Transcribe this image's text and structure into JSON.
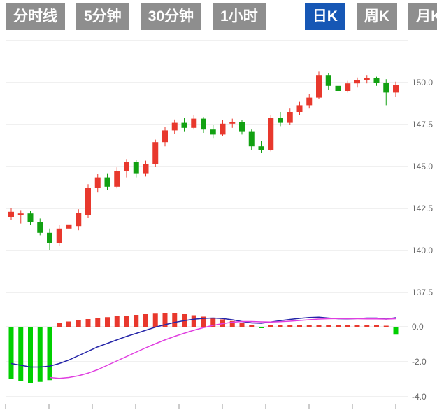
{
  "tabs": [
    {
      "label": "分时线",
      "active": false
    },
    {
      "label": "5分钟",
      "active": false
    },
    {
      "label": "30分钟",
      "active": false
    },
    {
      "label": "1小时",
      "active": false
    },
    {
      "label": "日K",
      "active": true
    },
    {
      "label": "周K",
      "active": false
    },
    {
      "label": "月K",
      "active": false
    }
  ],
  "colors": {
    "tab_bg": "#8e8e8e",
    "tab_active_bg": "#1657b5",
    "tab_text": "#ffffff",
    "up": "#e8382d",
    "down": "#12a112",
    "macd_up": "#e8382d",
    "macd_down": "#00cf00",
    "dif_line": "#2525a8",
    "dea_line": "#e03ee0",
    "grid": "#e2e2e2",
    "axis_text": "#666666",
    "tick": "#999999",
    "background": "#ffffff"
  },
  "chart_data": {
    "type": "candlestick",
    "subpanel_type": "macd",
    "title": "",
    "price_axis_labels": [
      "150.0",
      "147.5",
      "145.0",
      "142.5",
      "140.0",
      "137.5"
    ],
    "price_axis_values": [
      150.0,
      147.5,
      145.0,
      142.5,
      140.0,
      137.5
    ],
    "price_gridlines": [
      152.5,
      150.0,
      147.5,
      145.0,
      142.5,
      140.0,
      137.5
    ],
    "price_range": [
      136.6,
      152.6
    ],
    "macd_axis_labels": [
      "0.0",
      "-2.0",
      "-4.0"
    ],
    "macd_gridlines": [
      0.0,
      -2.0,
      -4.0
    ],
    "macd_range": [
      -4.4,
      0.9
    ],
    "grid": true,
    "legend_position": "none",
    "candles_ohlc": [
      [
        142.0,
        142.5,
        141.8,
        142.3
      ],
      [
        142.1,
        142.4,
        141.6,
        142.2
      ],
      [
        142.2,
        142.35,
        141.5,
        141.7
      ],
      [
        141.7,
        141.9,
        140.9,
        141.05
      ],
      [
        141.05,
        141.3,
        140.0,
        140.45
      ],
      [
        140.45,
        141.5,
        140.25,
        141.3
      ],
      [
        141.3,
        141.7,
        140.8,
        141.55
      ],
      [
        141.45,
        142.45,
        141.2,
        142.25
      ],
      [
        142.1,
        143.95,
        141.95,
        143.75
      ],
      [
        143.75,
        144.55,
        143.45,
        144.35
      ],
      [
        144.35,
        144.6,
        143.6,
        143.8
      ],
      [
        143.8,
        144.95,
        143.7,
        144.75
      ],
      [
        144.75,
        145.45,
        144.35,
        145.25
      ],
      [
        145.25,
        145.4,
        144.35,
        144.6
      ],
      [
        144.6,
        145.35,
        144.4,
        145.15
      ],
      [
        145.15,
        146.6,
        145.0,
        146.45
      ],
      [
        146.45,
        147.35,
        146.2,
        147.15
      ],
      [
        147.15,
        147.8,
        146.95,
        147.6
      ],
      [
        147.6,
        147.9,
        147.1,
        147.3
      ],
      [
        147.3,
        148.05,
        147.2,
        147.85
      ],
      [
        147.85,
        147.95,
        147.0,
        147.2
      ],
      [
        147.2,
        147.5,
        146.7,
        146.9
      ],
      [
        146.9,
        147.75,
        146.8,
        147.55
      ],
      [
        147.55,
        147.85,
        147.3,
        147.65
      ],
      [
        147.65,
        147.75,
        146.9,
        147.1
      ],
      [
        147.1,
        147.2,
        146.0,
        146.2
      ],
      [
        146.2,
        146.5,
        145.8,
        146.0
      ],
      [
        146.0,
        148.05,
        145.9,
        147.9
      ],
      [
        147.9,
        148.25,
        147.4,
        147.6
      ],
      [
        147.6,
        148.45,
        147.5,
        148.25
      ],
      [
        148.25,
        148.85,
        148.05,
        148.65
      ],
      [
        148.65,
        149.3,
        148.45,
        149.1
      ],
      [
        149.1,
        150.65,
        149.0,
        150.45
      ],
      [
        150.45,
        150.55,
        149.55,
        149.8
      ],
      [
        149.8,
        150.0,
        149.3,
        149.5
      ],
      [
        149.5,
        150.1,
        149.4,
        149.95
      ],
      [
        149.95,
        150.3,
        149.7,
        150.15
      ],
      [
        150.15,
        150.45,
        149.95,
        150.25
      ],
      [
        150.25,
        150.35,
        149.8,
        150.0
      ],
      [
        150.0,
        150.2,
        148.65,
        149.4
      ],
      [
        149.4,
        150.05,
        149.15,
        149.85
      ]
    ],
    "macd": {
      "hist": [
        -3.0,
        -3.1,
        -3.2,
        -3.15,
        -3.05,
        0.22,
        0.3,
        0.38,
        0.44,
        0.5,
        0.55,
        0.6,
        0.64,
        0.68,
        0.72,
        0.75,
        0.78,
        0.76,
        0.72,
        0.66,
        0.58,
        0.5,
        0.42,
        0.33,
        0.2,
        0.12,
        -0.06,
        0.08,
        0.08,
        0.08,
        0.08,
        0.1,
        0.1,
        0.08,
        0.08,
        0.1,
        0.1,
        0.08,
        0.08,
        0.06,
        -0.45
      ],
      "dif": [
        -2.1,
        -2.2,
        -2.3,
        -2.3,
        -2.25,
        -2.1,
        -1.9,
        -1.65,
        -1.4,
        -1.15,
        -0.95,
        -0.75,
        -0.55,
        -0.38,
        -0.2,
        -0.02,
        0.12,
        0.25,
        0.35,
        0.43,
        0.48,
        0.5,
        0.47,
        0.4,
        0.3,
        0.22,
        0.2,
        0.27,
        0.35,
        0.42,
        0.48,
        0.53,
        0.55,
        0.5,
        0.46,
        0.45,
        0.47,
        0.5,
        0.5,
        0.44,
        0.52
      ],
      "dea": [
        null,
        null,
        null,
        null,
        -2.9,
        -2.95,
        -2.9,
        -2.8,
        -2.65,
        -2.45,
        -2.2,
        -1.95,
        -1.7,
        -1.45,
        -1.2,
        -0.97,
        -0.75,
        -0.55,
        -0.37,
        -0.2,
        -0.05,
        0.08,
        0.18,
        0.26,
        0.3,
        0.3,
        0.28,
        0.27,
        0.29,
        0.32,
        0.36,
        0.4,
        0.44,
        0.46,
        0.47,
        0.46,
        0.46,
        0.45,
        0.45,
        0.44,
        0.46
      ]
    },
    "x_tick_count": 10
  }
}
